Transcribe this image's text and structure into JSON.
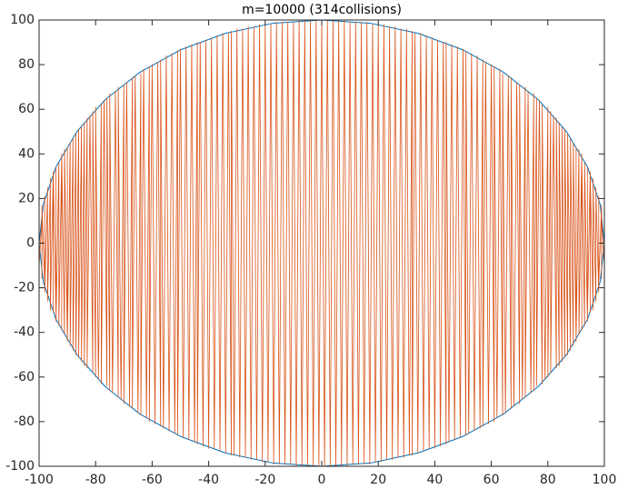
{
  "chart_data": {
    "type": "line",
    "title": "m=10000 (314collisions)",
    "xlim": [
      -100,
      100
    ],
    "ylim": [
      -100,
      100
    ],
    "xticks": [
      -100,
      -80,
      -60,
      -40,
      -20,
      0,
      20,
      40,
      60,
      80,
      100
    ],
    "yticks": [
      -100,
      -80,
      -60,
      -40,
      -20,
      0,
      20,
      40,
      60,
      80,
      100
    ],
    "grid": false,
    "box": true,
    "series": [
      {
        "color": "#0072bd",
        "x": [
          100,
          98.5,
          94,
          86.6,
          76.6,
          64.3,
          50,
          34.2,
          17.4,
          0,
          -17.4,
          -34.2,
          -50,
          -64.3,
          -76.6,
          -86.6,
          -94,
          -98.5,
          -100,
          -98.5,
          -94,
          -86.6,
          -76.6,
          -64.3,
          -50,
          -34.2,
          -17.4,
          0,
          17.4,
          34.2,
          50,
          64.3,
          76.6,
          86.6,
          94,
          98.5,
          100
        ],
        "values": [
          0,
          17.4,
          34.2,
          50,
          64.3,
          76.6,
          86.6,
          94,
          98.5,
          100,
          98.5,
          94,
          86.6,
          76.6,
          64.3,
          50,
          34.2,
          17.4,
          0,
          -17.4,
          -34.2,
          -50,
          -64.3,
          -76.6,
          -86.6,
          -94,
          -98.5,
          -100,
          -98.5,
          -94,
          -86.6,
          -76.6,
          -64.3,
          -50,
          -34.2,
          -17.4,
          0
        ]
      },
      {
        "color": "#d95319",
        "x": [
          -100,
          -100,
          -100,
          -100,
          -100,
          -100,
          -100,
          -100,
          -100,
          -100,
          -100,
          -99,
          -99,
          -99,
          -99,
          -99,
          -99,
          -99,
          -98,
          -98,
          -98,
          -98,
          -98,
          -97,
          -97,
          -97,
          -97,
          -96,
          -96,
          -96,
          -96,
          -95,
          -95,
          -95,
          -94,
          -94,
          -94,
          -93,
          -93,
          -92,
          -92,
          -92,
          -91,
          -91,
          -90,
          -90,
          -90,
          -89,
          -89,
          -88,
          -88,
          -87,
          -87,
          -86,
          -86,
          -85,
          -85,
          -84,
          -84,
          -83,
          -83,
          -82,
          -81,
          -81,
          -80,
          -80,
          -79,
          -78,
          -78,
          -77,
          -76,
          -76,
          -75,
          -75,
          -74,
          -73,
          -72,
          -72,
          -71,
          -70,
          -70,
          -69,
          -68,
          -67,
          -67,
          -66,
          -65,
          -64,
          -64,
          -63,
          -62,
          -61,
          -61,
          -60,
          -59,
          -58,
          -57,
          -57,
          -56,
          -55,
          -54,
          -53,
          -52,
          -51,
          -51,
          -50,
          -49,
          -48,
          -47,
          -46,
          -45,
          -44,
          -44,
          -43,
          -42,
          -41,
          -40,
          -39,
          -38,
          -37,
          -36,
          -35,
          -34,
          -33,
          -32,
          -32,
          -31,
          -30,
          -29,
          -28,
          -27,
          -26,
          -25,
          -24,
          -23,
          -22,
          -21,
          -20,
          -19,
          -18,
          -17,
          -16,
          -15,
          -14,
          -13,
          -12,
          -11,
          -10,
          -9,
          -8,
          -7,
          -6,
          -5,
          -4,
          -3,
          -2,
          -1,
          0,
          1,
          2,
          3,
          4,
          5,
          6,
          7,
          8,
          9,
          10,
          11,
          12,
          13,
          14,
          15,
          16,
          17,
          18,
          19,
          20,
          21,
          22,
          23,
          24,
          25,
          26,
          27,
          28,
          29,
          30,
          31,
          32,
          32,
          33,
          34,
          35,
          36,
          37,
          38,
          39,
          40,
          41,
          42,
          43,
          44,
          44,
          45,
          46,
          47,
          48,
          49,
          50,
          51,
          51,
          52,
          53,
          54,
          55,
          56,
          57,
          57,
          58,
          59,
          60,
          61,
          61,
          62,
          63,
          64,
          64,
          65,
          66,
          67,
          67,
          68,
          69,
          70,
          70,
          71,
          72,
          72,
          73,
          74,
          75,
          75,
          76,
          76,
          77,
          78,
          78,
          79,
          80,
          80,
          81,
          81,
          82,
          83,
          83,
          84,
          84,
          85,
          85,
          86,
          86,
          87,
          87,
          88,
          88,
          89,
          89,
          90,
          90,
          90,
          91,
          91,
          92,
          92,
          92,
          93,
          93,
          94,
          94,
          94,
          95,
          95,
          95,
          96,
          96,
          96,
          96,
          97,
          97,
          97,
          97,
          98,
          98,
          98,
          98,
          98,
          99,
          99,
          99,
          99,
          99,
          99,
          99,
          100,
          100,
          100,
          100,
          100,
          100,
          100,
          100,
          100,
          100,
          100
        ],
        "values": [
          0,
          1,
          -2,
          3,
          -4,
          5,
          -6,
          7,
          -8,
          9,
          -10,
          11,
          -12,
          13,
          -14,
          15,
          -16,
          17,
          -18,
          19,
          -20,
          21,
          -22,
          23,
          -24,
          25,
          -26,
          27,
          -28,
          29,
          -30,
          31,
          -31,
          32,
          -33,
          34,
          -35,
          36,
          -37,
          38,
          -39,
          40,
          -41,
          42,
          -43,
          43,
          -44,
          45,
          -46,
          47,
          -48,
          49,
          -50,
          51,
          -51,
          52,
          -53,
          54,
          -55,
          56,
          -56,
          57,
          -58,
          59,
          -60,
          61,
          -61,
          62,
          -63,
          64,
          -64,
          65,
          -66,
          67,
          -67,
          68,
          -69,
          70,
          -70,
          71,
          -72,
          72,
          -73,
          74,
          -74,
          75,
          -76,
          76,
          -77,
          78,
          -78,
          79,
          -80,
          80,
          -81,
          81,
          -82,
          82,
          -83,
          84,
          -84,
          85,
          -85,
          86,
          -86,
          87,
          -87,
          88,
          -88,
          89,
          -89,
          90,
          -90,
          90,
          -91,
          91,
          -92,
          92,
          -92,
          93,
          -93,
          94,
          -94,
          94,
          -95,
          95,
          -95,
          96,
          -96,
          96,
          -96,
          97,
          -97,
          97,
          -97,
          98,
          -98,
          98,
          -98,
          98,
          -99,
          99,
          -99,
          99,
          -99,
          99,
          -99,
          99,
          -100,
          100,
          -100,
          100,
          -100,
          100,
          -100,
          100,
          -100,
          100,
          -100,
          100,
          -100,
          100,
          -100,
          100,
          -100,
          100,
          -100,
          99,
          -99,
          99,
          -99,
          99,
          -99,
          99,
          -99,
          98,
          -98,
          98,
          -98,
          98,
          -97,
          97,
          -97,
          97,
          -96,
          96,
          -96,
          96,
          -95,
          95,
          -95,
          94,
          -94,
          94,
          -93,
          93,
          -92,
          92,
          -92,
          91,
          -91,
          90,
          -90,
          90,
          -89,
          89,
          -88,
          88,
          -87,
          87,
          -86,
          86,
          -85,
          85,
          -84,
          84,
          -83,
          82,
          -82,
          81,
          -81,
          80,
          -80,
          79,
          -78,
          78,
          -77,
          76,
          -76,
          75,
          -74,
          74,
          -73,
          72,
          -72,
          71,
          -70,
          70,
          -69,
          68,
          -67,
          67,
          -66,
          65,
          -64,
          64,
          -63,
          62,
          -61,
          61,
          -60,
          59,
          -58,
          57,
          -56,
          56,
          -55,
          54,
          -53,
          52,
          -51,
          51,
          -50,
          49,
          -48,
          47,
          -46,
          45,
          -44,
          43,
          -43,
          42,
          -41,
          40,
          -39,
          38,
          -37,
          36,
          -35,
          34,
          -33,
          32,
          -31,
          31,
          -30,
          29,
          -28,
          27,
          -26,
          25,
          -24,
          23,
          -22,
          21,
          -20,
          19,
          -18,
          17,
          -16,
          15,
          -14,
          13,
          -12,
          11,
          -10,
          9,
          -8,
          7,
          -6,
          5,
          -4,
          3,
          -2,
          1,
          0
        ]
      }
    ]
  }
}
